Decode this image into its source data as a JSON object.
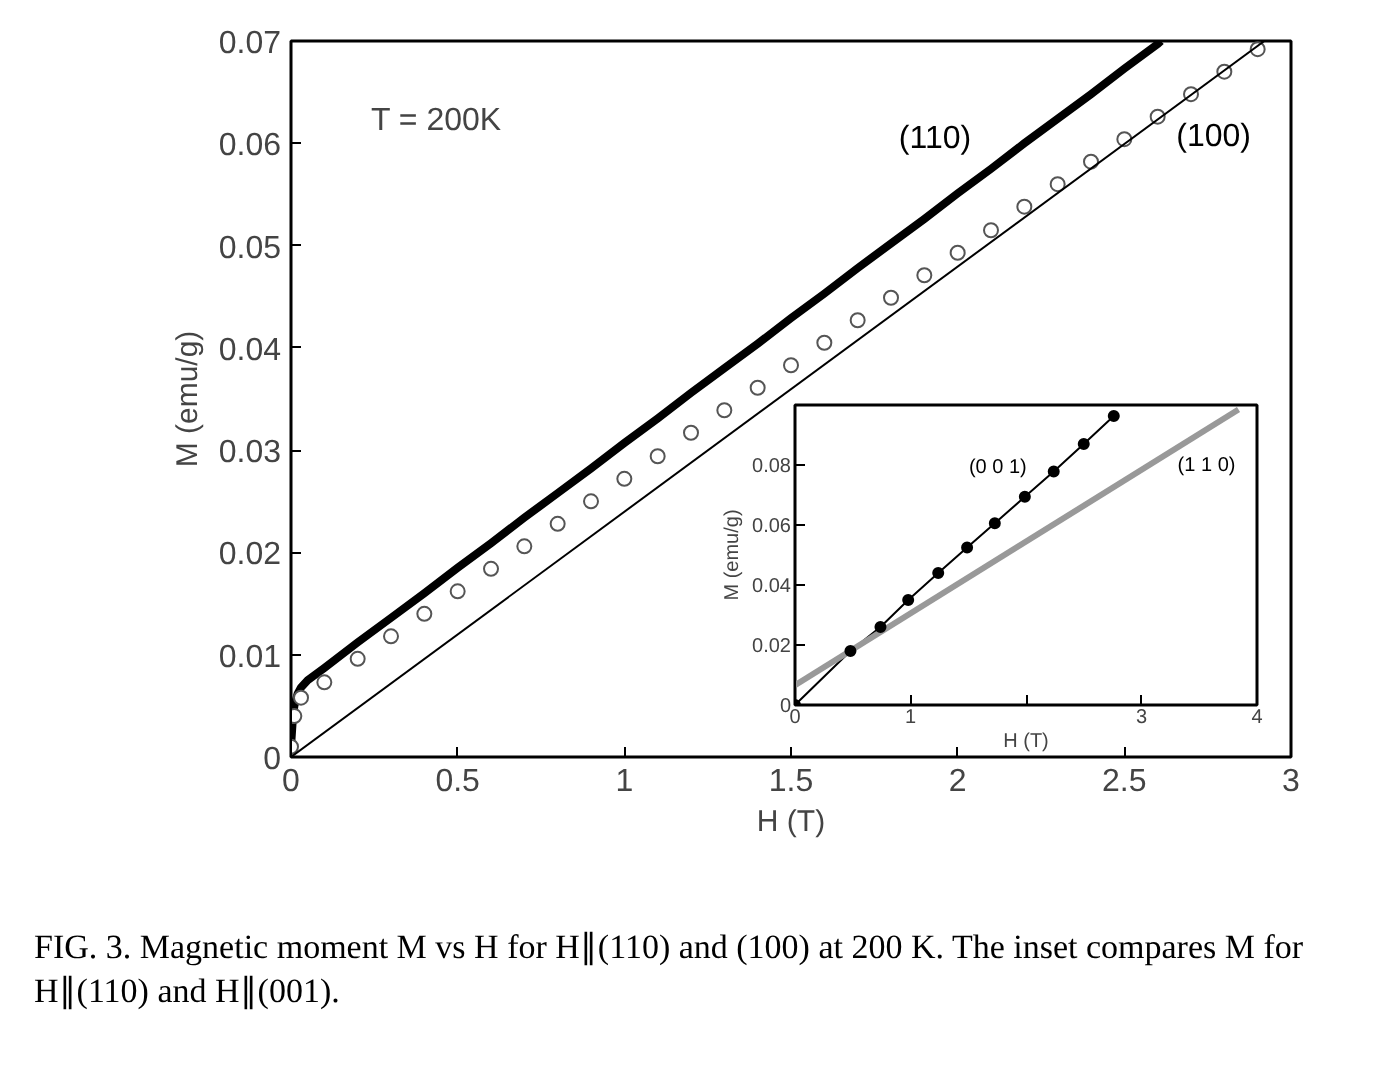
{
  "chart_data": [
    {
      "type": "scatter",
      "xlabel": "H (T)",
      "ylabel": "M (emu/g)",
      "xlim": [
        0,
        3
      ],
      "ylim": [
        0,
        0.07
      ],
      "xticks": [
        0,
        0.5,
        1,
        1.5,
        2,
        2.5,
        3
      ],
      "yticks": [
        0,
        0.01,
        0.02,
        0.03,
        0.04,
        0.05,
        0.06,
        0.07
      ],
      "grid": false,
      "series": [
        {
          "name": "(110)",
          "type": "line",
          "color": "#000000",
          "x": [
            0,
            0.005,
            0.01,
            0.02,
            0.03,
            0.05,
            0.1,
            0.2,
            0.3,
            0.4,
            0.5,
            0.6,
            0.7,
            0.8,
            0.9,
            1.0,
            1.1,
            1.2,
            1.3,
            1.4,
            1.5,
            1.6,
            1.7,
            1.8,
            1.9,
            2.0,
            2.1,
            2.2,
            2.3,
            2.4,
            2.5,
            2.6,
            2.61
          ],
          "values": [
            0.001,
            0.0035,
            0.005,
            0.0062,
            0.0068,
            0.0075,
            0.0087,
            0.0112,
            0.0136,
            0.016,
            0.0185,
            0.0209,
            0.0234,
            0.0258,
            0.0282,
            0.0307,
            0.0331,
            0.0356,
            0.038,
            0.0404,
            0.0429,
            0.0453,
            0.0478,
            0.0502,
            0.0526,
            0.0551,
            0.0575,
            0.06,
            0.0624,
            0.0648,
            0.0673,
            0.0697,
            0.07
          ]
        },
        {
          "name": "(100)",
          "marker": "circle",
          "color": "#555555",
          "x": [
            0,
            0.01,
            0.03,
            0.1,
            0.2,
            0.3,
            0.4,
            0.5,
            0.6,
            0.7,
            0.8,
            0.9,
            1.0,
            1.1,
            1.2,
            1.3,
            1.4,
            1.5,
            1.6,
            1.7,
            1.8,
            1.9,
            2.0,
            2.1,
            2.2,
            2.3,
            2.4,
            2.5,
            2.6,
            2.7,
            2.8,
            2.9
          ],
          "values": [
            0.001,
            0.004,
            0.0058,
            0.0073,
            0.0096,
            0.0118,
            0.014,
            0.0162,
            0.0184,
            0.0206,
            0.0228,
            0.025,
            0.0272,
            0.0294,
            0.0317,
            0.0339,
            0.0361,
            0.0383,
            0.0405,
            0.0427,
            0.0449,
            0.0471,
            0.0493,
            0.0515,
            0.0538,
            0.056,
            0.0582,
            0.0604,
            0.0626,
            0.0648,
            0.067,
            0.0692
          ]
        },
        {
          "type": "line",
          "color": "#000000",
          "x": [
            0,
            2.92
          ],
          "values": [
            0,
            0.07
          ]
        }
      ],
      "annotations": [
        "T = 200K",
        "FIG. 3. Magnetic moment M vs H for H∥(110) and (100) at 200 K. The inset compares M for H∥(110) and H∥(001)."
      ]
    },
    {
      "type": "line",
      "xlabel": "H (T)",
      "ylabel": "M (emu/g)",
      "xlim": [
        0,
        4
      ],
      "ylim": [
        0,
        0.1
      ],
      "xticks": [
        0,
        1,
        {
          "value": 2,
          "label": null
        },
        3,
        4
      ],
      "yticks": [
        0,
        0.02,
        0.04,
        0.06,
        0.08
      ],
      "grid": false,
      "series": [
        {
          "name": "(0 0 1)",
          "marker": "circle",
          "color": "#000000",
          "x": [
            0,
            0.48,
            0.74,
            0.98,
            1.24,
            1.49,
            1.73,
            1.99,
            2.24,
            2.5,
            2.76
          ],
          "values": [
            0,
            0.018,
            0.026,
            0.035,
            0.044,
            0.0525,
            0.0606,
            0.0694,
            0.0778,
            0.087,
            0.0963
          ]
        },
        {
          "name": "(1 1 0)",
          "marker": "none",
          "color": "#999999",
          "x": [
            0,
            3.84
          ],
          "values": [
            0.0066,
            0.0985
          ]
        }
      ]
    }
  ]
}
